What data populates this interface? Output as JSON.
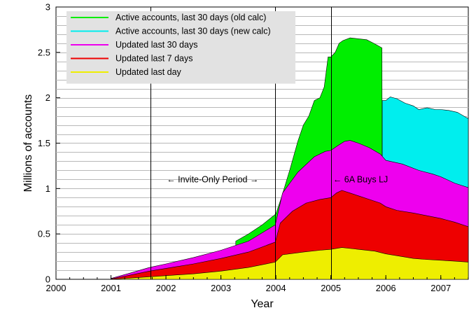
{
  "chart_data": {
    "type": "area",
    "xlabel": "Year",
    "ylabel": "Millions of accounts",
    "xlim": [
      2000,
      2007.5
    ],
    "ylim": [
      0,
      3
    ],
    "xticks": [
      {
        "value": 2000,
        "label": "2000"
      },
      {
        "value": 2001,
        "label": "2001"
      },
      {
        "value": 2002,
        "label": "2002"
      },
      {
        "value": 2003,
        "label": "2003"
      },
      {
        "value": 2004,
        "label": "2004"
      },
      {
        "value": 2005,
        "label": "2005"
      },
      {
        "value": 2006,
        "label": "2006"
      },
      {
        "value": 2007,
        "label": "2007"
      }
    ],
    "yticks": [
      {
        "value": 0,
        "label": "0"
      },
      {
        "value": 0.5,
        "label": "0.5"
      },
      {
        "value": 1,
        "label": "1"
      },
      {
        "value": 1.5,
        "label": "1.5"
      },
      {
        "value": 2,
        "label": "2"
      },
      {
        "value": 2.5,
        "label": "2.5"
      },
      {
        "value": 3,
        "label": "3"
      }
    ],
    "ygrid_step": 0.1,
    "series": [
      {
        "name": "Active accounts, last 30 days (old calc)",
        "color": "#00ee00",
        "points": [
          [
            2003.27,
            0.42
          ],
          [
            2003.5,
            0.5
          ],
          [
            2003.75,
            0.6
          ],
          [
            2004.0,
            0.72
          ],
          [
            2004.1,
            0.9
          ],
          [
            2004.25,
            1.2
          ],
          [
            2004.4,
            1.52
          ],
          [
            2004.5,
            1.7
          ],
          [
            2004.6,
            1.8
          ],
          [
            2004.7,
            1.97
          ],
          [
            2004.8,
            2.0
          ],
          [
            2004.88,
            2.12
          ],
          [
            2004.95,
            2.45
          ],
          [
            2005.0,
            2.45
          ],
          [
            2005.08,
            2.5
          ],
          [
            2005.15,
            2.6
          ],
          [
            2005.22,
            2.63
          ],
          [
            2005.35,
            2.66
          ],
          [
            2005.5,
            2.65
          ],
          [
            2005.65,
            2.64
          ],
          [
            2005.78,
            2.6
          ],
          [
            2005.93,
            2.55
          ],
          [
            2005.935,
            0
          ]
        ]
      },
      {
        "name": "Active accounts, last 30 days (new calc)",
        "color": "#00eeee",
        "points": [
          [
            2005.935,
            1.97
          ],
          [
            2006.0,
            1.97
          ],
          [
            2006.08,
            2.01
          ],
          [
            2006.2,
            1.99
          ],
          [
            2006.35,
            1.94
          ],
          [
            2006.5,
            1.91
          ],
          [
            2006.6,
            1.87
          ],
          [
            2006.75,
            1.89
          ],
          [
            2006.9,
            1.87
          ],
          [
            2007.0,
            1.87
          ],
          [
            2007.15,
            1.86
          ],
          [
            2007.3,
            1.84
          ],
          [
            2007.5,
            1.77
          ]
        ]
      },
      {
        "name": "Updated last 30 days",
        "color": "#ee00ee",
        "points": [
          [
            2001.0,
            0.01
          ],
          [
            2001.3,
            0.06
          ],
          [
            2001.7,
            0.13
          ],
          [
            2002.0,
            0.17
          ],
          [
            2002.5,
            0.24
          ],
          [
            2003.0,
            0.32
          ],
          [
            2003.5,
            0.42
          ],
          [
            2003.99,
            0.6
          ],
          [
            2004.12,
            0.95
          ],
          [
            2004.4,
            1.18
          ],
          [
            2004.7,
            1.35
          ],
          [
            2004.9,
            1.41
          ],
          [
            2005.0,
            1.42
          ],
          [
            2005.12,
            1.47
          ],
          [
            2005.25,
            1.52
          ],
          [
            2005.35,
            1.53
          ],
          [
            2005.5,
            1.5
          ],
          [
            2005.7,
            1.45
          ],
          [
            2005.9,
            1.38
          ],
          [
            2006.0,
            1.31
          ],
          [
            2006.3,
            1.27
          ],
          [
            2006.6,
            1.2
          ],
          [
            2006.85,
            1.16
          ],
          [
            2007.0,
            1.13
          ],
          [
            2007.25,
            1.06
          ],
          [
            2007.5,
            1.01
          ]
        ]
      },
      {
        "name": "Updated last 7 days",
        "color": "#ee0000",
        "points": [
          [
            2001.0,
            0.005
          ],
          [
            2001.3,
            0.04
          ],
          [
            2001.7,
            0.09
          ],
          [
            2002.0,
            0.12
          ],
          [
            2002.5,
            0.17
          ],
          [
            2003.0,
            0.23
          ],
          [
            2003.5,
            0.3
          ],
          [
            2003.99,
            0.41
          ],
          [
            2004.08,
            0.62
          ],
          [
            2004.3,
            0.75
          ],
          [
            2004.55,
            0.84
          ],
          [
            2004.8,
            0.88
          ],
          [
            2005.0,
            0.9
          ],
          [
            2005.1,
            0.95
          ],
          [
            2005.2,
            0.98
          ],
          [
            2005.35,
            0.95
          ],
          [
            2005.5,
            0.92
          ],
          [
            2005.7,
            0.88
          ],
          [
            2005.9,
            0.84
          ],
          [
            2006.0,
            0.8
          ],
          [
            2006.2,
            0.76
          ],
          [
            2006.5,
            0.73
          ],
          [
            2006.75,
            0.7
          ],
          [
            2007.0,
            0.67
          ],
          [
            2007.25,
            0.63
          ],
          [
            2007.5,
            0.58
          ]
        ]
      },
      {
        "name": "Updated last day",
        "color": "#eeee00",
        "points": [
          [
            2001.0,
            0.0
          ],
          [
            2001.5,
            0.02
          ],
          [
            2002.0,
            0.04
          ],
          [
            2002.5,
            0.06
          ],
          [
            2003.0,
            0.09
          ],
          [
            2003.5,
            0.13
          ],
          [
            2003.99,
            0.19
          ],
          [
            2004.12,
            0.27
          ],
          [
            2004.5,
            0.3
          ],
          [
            2004.8,
            0.32
          ],
          [
            2005.0,
            0.33
          ],
          [
            2005.2,
            0.35
          ],
          [
            2005.5,
            0.33
          ],
          [
            2005.8,
            0.31
          ],
          [
            2006.0,
            0.28
          ],
          [
            2006.3,
            0.25
          ],
          [
            2006.5,
            0.23
          ],
          [
            2006.7,
            0.22
          ],
          [
            2007.0,
            0.21
          ],
          [
            2007.25,
            0.2
          ],
          [
            2007.5,
            0.19
          ]
        ]
      }
    ],
    "vlines": [
      2001.72,
      2003.99,
      2005.01
    ],
    "annotations": [
      {
        "text": "←  Invite-Only Period  →",
        "x": 2002.85,
        "y": 1.1
      },
      {
        "text": "← 6A Buys LJ",
        "x": 2005.04,
        "y": 1.1
      }
    ],
    "legend_position": "top-left"
  }
}
